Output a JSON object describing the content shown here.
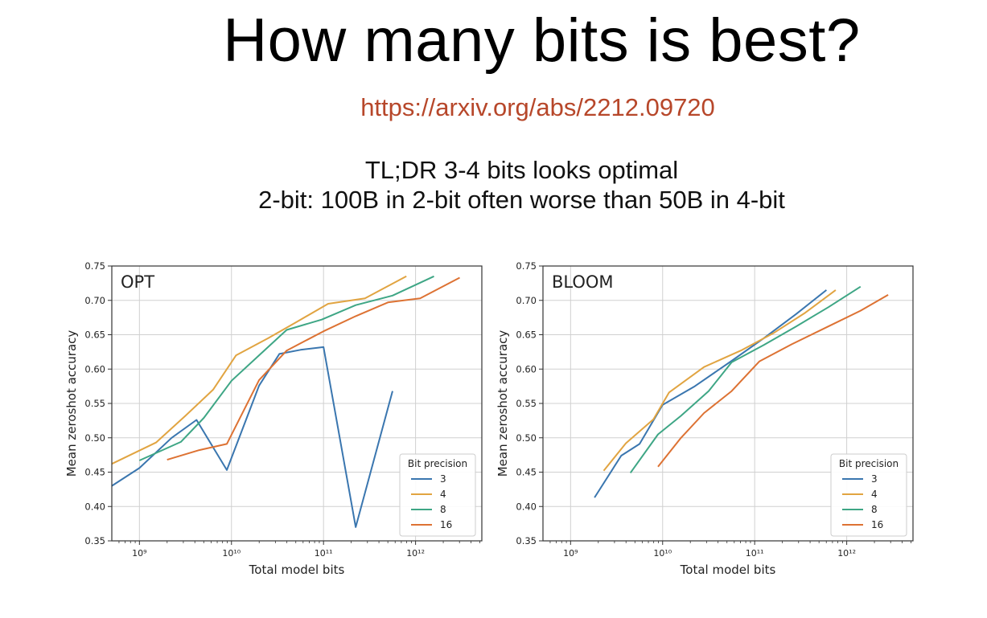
{
  "slide": {
    "title": "How many bits is best?",
    "link": "https://arxiv.org/abs/2212.09720",
    "summary_line1": "TL;DR 3-4 bits looks optimal",
    "summary_line2": "2-bit: 100B in 2-bit often worse than 50B in 4-bit"
  },
  "chart_data": [
    {
      "type": "line",
      "title": "OPT",
      "xlabel": "Total model bits",
      "ylabel": "Mean zeroshot accuracy",
      "xscale": "log",
      "xlim_log10": [
        8.7,
        12.72
      ],
      "ylim": [
        0.35,
        0.75
      ],
      "x_ticks": [
        "10⁹",
        "10¹⁰",
        "10¹¹",
        "10¹²"
      ],
      "y_ticks": [
        "0.35",
        "0.40",
        "0.45",
        "0.50",
        "0.55",
        "0.60",
        "0.65",
        "0.70",
        "0.75"
      ],
      "grid": true,
      "legend_title": "Bit precision",
      "legend_position": "lower-right",
      "series": [
        {
          "name": "3",
          "color": "#3a76af",
          "log10_x": [
            8.7,
            9.0,
            9.35,
            9.62,
            9.95,
            10.3,
            10.52,
            10.75,
            11.0,
            11.35,
            11.75
          ],
          "y": [
            0.43,
            0.456,
            0.5,
            0.526,
            0.453,
            0.576,
            0.622,
            0.628,
            0.632,
            0.37,
            0.568
          ]
        },
        {
          "name": "4",
          "color": "#e1a441",
          "log10_x": [
            8.7,
            9.18,
            9.5,
            9.8,
            10.05,
            10.4,
            10.7,
            11.05,
            11.45,
            11.9
          ],
          "y": [
            0.462,
            0.493,
            0.532,
            0.57,
            0.62,
            0.645,
            0.668,
            0.695,
            0.703,
            0.735
          ]
        },
        {
          "name": "8",
          "color": "#3ea685",
          "log10_x": [
            9.0,
            9.45,
            9.7,
            10.0,
            10.3,
            10.6,
            10.98,
            11.35,
            11.75,
            12.2
          ],
          "y": [
            0.467,
            0.494,
            0.529,
            0.583,
            0.62,
            0.657,
            0.672,
            0.693,
            0.707,
            0.735
          ]
        },
        {
          "name": "16",
          "color": "#dd7233",
          "log10_x": [
            9.3,
            9.65,
            9.95,
            10.3,
            10.6,
            11.0,
            11.35,
            11.7,
            12.05,
            12.48
          ],
          "y": [
            0.468,
            0.482,
            0.491,
            0.584,
            0.627,
            0.655,
            0.677,
            0.697,
            0.703,
            0.733
          ]
        }
      ]
    },
    {
      "type": "line",
      "title": "BLOOM",
      "xlabel": "Total model bits",
      "ylabel": "Mean zeroshot accuracy",
      "xscale": "log",
      "xlim_log10": [
        8.7,
        12.72
      ],
      "ylim": [
        0.35,
        0.75
      ],
      "x_ticks": [
        "10⁹",
        "10¹⁰",
        "10¹¹",
        "10¹²"
      ],
      "y_ticks": [
        "0.35",
        "0.40",
        "0.45",
        "0.50",
        "0.55",
        "0.60",
        "0.65",
        "0.70",
        "0.75"
      ],
      "grid": true,
      "legend_title": "Bit precision",
      "legend_position": "lower-right",
      "series": [
        {
          "name": "3",
          "color": "#3a76af",
          "log10_x": [
            9.26,
            9.55,
            9.75,
            10.0,
            10.35,
            10.75,
            11.1,
            11.45,
            11.78
          ],
          "y": [
            0.413,
            0.474,
            0.491,
            0.548,
            0.575,
            0.612,
            0.645,
            0.68,
            0.715
          ]
        },
        {
          "name": "4",
          "color": "#e1a441",
          "log10_x": [
            9.36,
            9.6,
            9.9,
            10.07,
            10.45,
            10.85,
            11.2,
            11.55,
            11.88
          ],
          "y": [
            0.452,
            0.492,
            0.527,
            0.566,
            0.603,
            0.627,
            0.652,
            0.682,
            0.715
          ]
        },
        {
          "name": "8",
          "color": "#3ea685",
          "log10_x": [
            9.65,
            9.95,
            10.2,
            10.5,
            10.75,
            11.1,
            11.45,
            11.8,
            12.15
          ],
          "y": [
            0.449,
            0.505,
            0.532,
            0.568,
            0.61,
            0.635,
            0.662,
            0.69,
            0.72
          ]
        },
        {
          "name": "16",
          "color": "#dd7233",
          "log10_x": [
            9.95,
            10.2,
            10.45,
            10.75,
            11.05,
            11.4,
            11.8,
            12.15,
            12.45
          ],
          "y": [
            0.458,
            0.5,
            0.536,
            0.568,
            0.611,
            0.636,
            0.662,
            0.685,
            0.708
          ]
        }
      ]
    }
  ]
}
